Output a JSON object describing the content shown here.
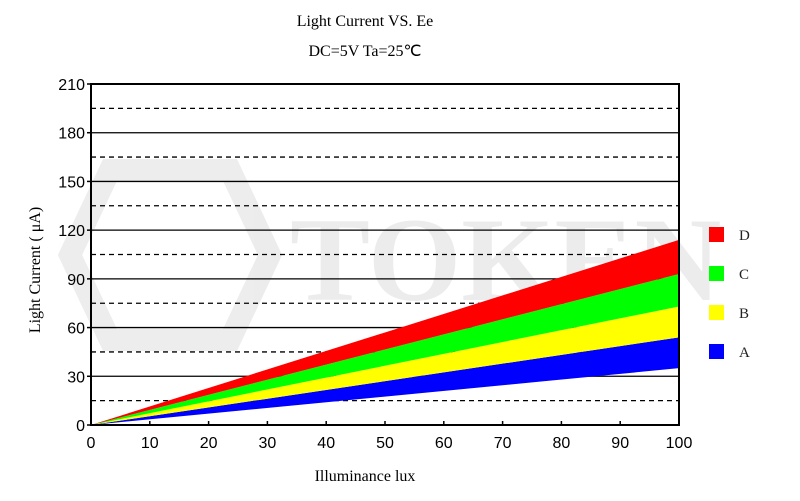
{
  "chart_data": {
    "type": "area",
    "title": "Light Current VS. Ee",
    "subtitle": "DC=5V   Ta=25℃",
    "xlabel": "Illuminance   lux",
    "ylabel": "Light Current ( μA)",
    "xlim": [
      0,
      100
    ],
    "ylim": [
      0,
      210
    ],
    "x_ticks": [
      "0",
      "10",
      "20",
      "30",
      "40",
      "50",
      "60",
      "70",
      "80",
      "90",
      "100"
    ],
    "y_ticks": [
      "0",
      "30",
      "60",
      "90",
      "120",
      "150",
      "180",
      "210"
    ],
    "grid": {
      "solid_every": 30,
      "dashed_at": [
        15,
        45,
        75,
        105,
        135,
        165,
        195
      ]
    },
    "legend_position": "right",
    "watermark": "TOKEN",
    "x": [
      0,
      100
    ],
    "series": [
      {
        "name": "A",
        "color": "#0000ff",
        "lower": [
          0,
          35
        ],
        "upper": [
          0,
          54
        ]
      },
      {
        "name": "B",
        "color": "#ffff00",
        "lower": [
          0,
          54
        ],
        "upper": [
          0,
          73
        ]
      },
      {
        "name": "C",
        "color": "#00ff00",
        "lower": [
          0,
          73
        ],
        "upper": [
          0,
          93
        ]
      },
      {
        "name": "D",
        "color": "#ff0000",
        "lower": [
          0,
          93
        ],
        "upper": [
          0,
          114
        ]
      }
    ]
  }
}
